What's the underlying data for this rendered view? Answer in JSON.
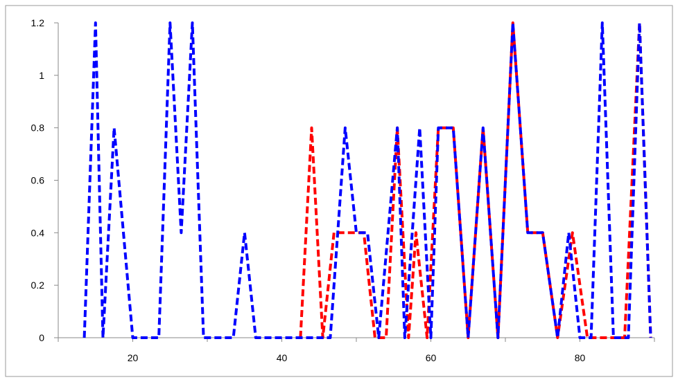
{
  "chart_data": {
    "type": "line",
    "title": "",
    "xlabel": "",
    "ylabel": "",
    "xlim": [
      10,
      90
    ],
    "ylim": [
      0,
      1.2
    ],
    "x_ticks": [
      20,
      40,
      60,
      80
    ],
    "y_ticks": [
      0,
      0.2,
      0.4,
      0.6,
      0.8,
      1,
      1.2
    ],
    "y_tick_labels": [
      "0",
      "0.2",
      "0.4",
      "0.6",
      "0.8",
      "1",
      "1.2"
    ],
    "x_tick_labels": [
      "20",
      "40",
      "60",
      "80"
    ],
    "grid": false,
    "legend": "none",
    "series": [
      {
        "color": "#ff0000",
        "dash": "dashed",
        "points": [
          [
            42.5,
            0
          ],
          [
            44,
            0.8
          ],
          [
            45.5,
            0
          ],
          [
            47,
            0.4
          ],
          [
            49,
            0.4
          ],
          [
            51,
            0.4
          ],
          [
            52.5,
            0
          ],
          [
            54,
            0
          ],
          [
            55.5,
            0.8
          ],
          [
            57,
            0
          ],
          [
            58,
            0.4
          ],
          [
            59.5,
            0
          ],
          [
            61,
            0.8
          ],
          [
            63,
            0.8
          ],
          [
            65,
            0
          ],
          [
            67,
            0.8
          ],
          [
            69,
            0
          ],
          [
            71,
            1.2
          ],
          [
            73,
            0.4
          ],
          [
            75,
            0.4
          ],
          [
            77,
            0
          ],
          [
            79,
            0.4
          ],
          [
            81,
            0
          ],
          [
            82.5,
            0
          ],
          [
            84,
            0
          ],
          [
            86,
            0
          ],
          [
            88,
            1.2
          ],
          [
            89.5,
            0
          ]
        ]
      },
      {
        "color": "#0000ff",
        "dash": "dashed",
        "points": [
          [
            13.5,
            0
          ],
          [
            15,
            1.2
          ],
          [
            16,
            0
          ],
          [
            17.5,
            0.8
          ],
          [
            20,
            0
          ],
          [
            23.5,
            0
          ],
          [
            25,
            1.2
          ],
          [
            26.5,
            0.4
          ],
          [
            28,
            1.2
          ],
          [
            29.5,
            0
          ],
          [
            33.5,
            0
          ],
          [
            35,
            0.4
          ],
          [
            36.5,
            0
          ],
          [
            46.5,
            0
          ],
          [
            48.5,
            0.8
          ],
          [
            50,
            0.4
          ],
          [
            51.5,
            0.4
          ],
          [
            53,
            0
          ],
          [
            55.5,
            0.8
          ],
          [
            56.5,
            0
          ],
          [
            58.5,
            0.8
          ],
          [
            60,
            0
          ],
          [
            61,
            0.8
          ],
          [
            63,
            0.8
          ],
          [
            65,
            0
          ],
          [
            67,
            0.8
          ],
          [
            69,
            0
          ],
          [
            71,
            1.2
          ],
          [
            73,
            0.4
          ],
          [
            75,
            0.4
          ],
          [
            77,
            0
          ],
          [
            78.5,
            0.4
          ],
          [
            80,
            0
          ],
          [
            81.5,
            0
          ],
          [
            83,
            1.2
          ],
          [
            84.5,
            0
          ],
          [
            86.5,
            0
          ],
          [
            88,
            1.2
          ],
          [
            89.5,
            0
          ]
        ]
      }
    ]
  }
}
